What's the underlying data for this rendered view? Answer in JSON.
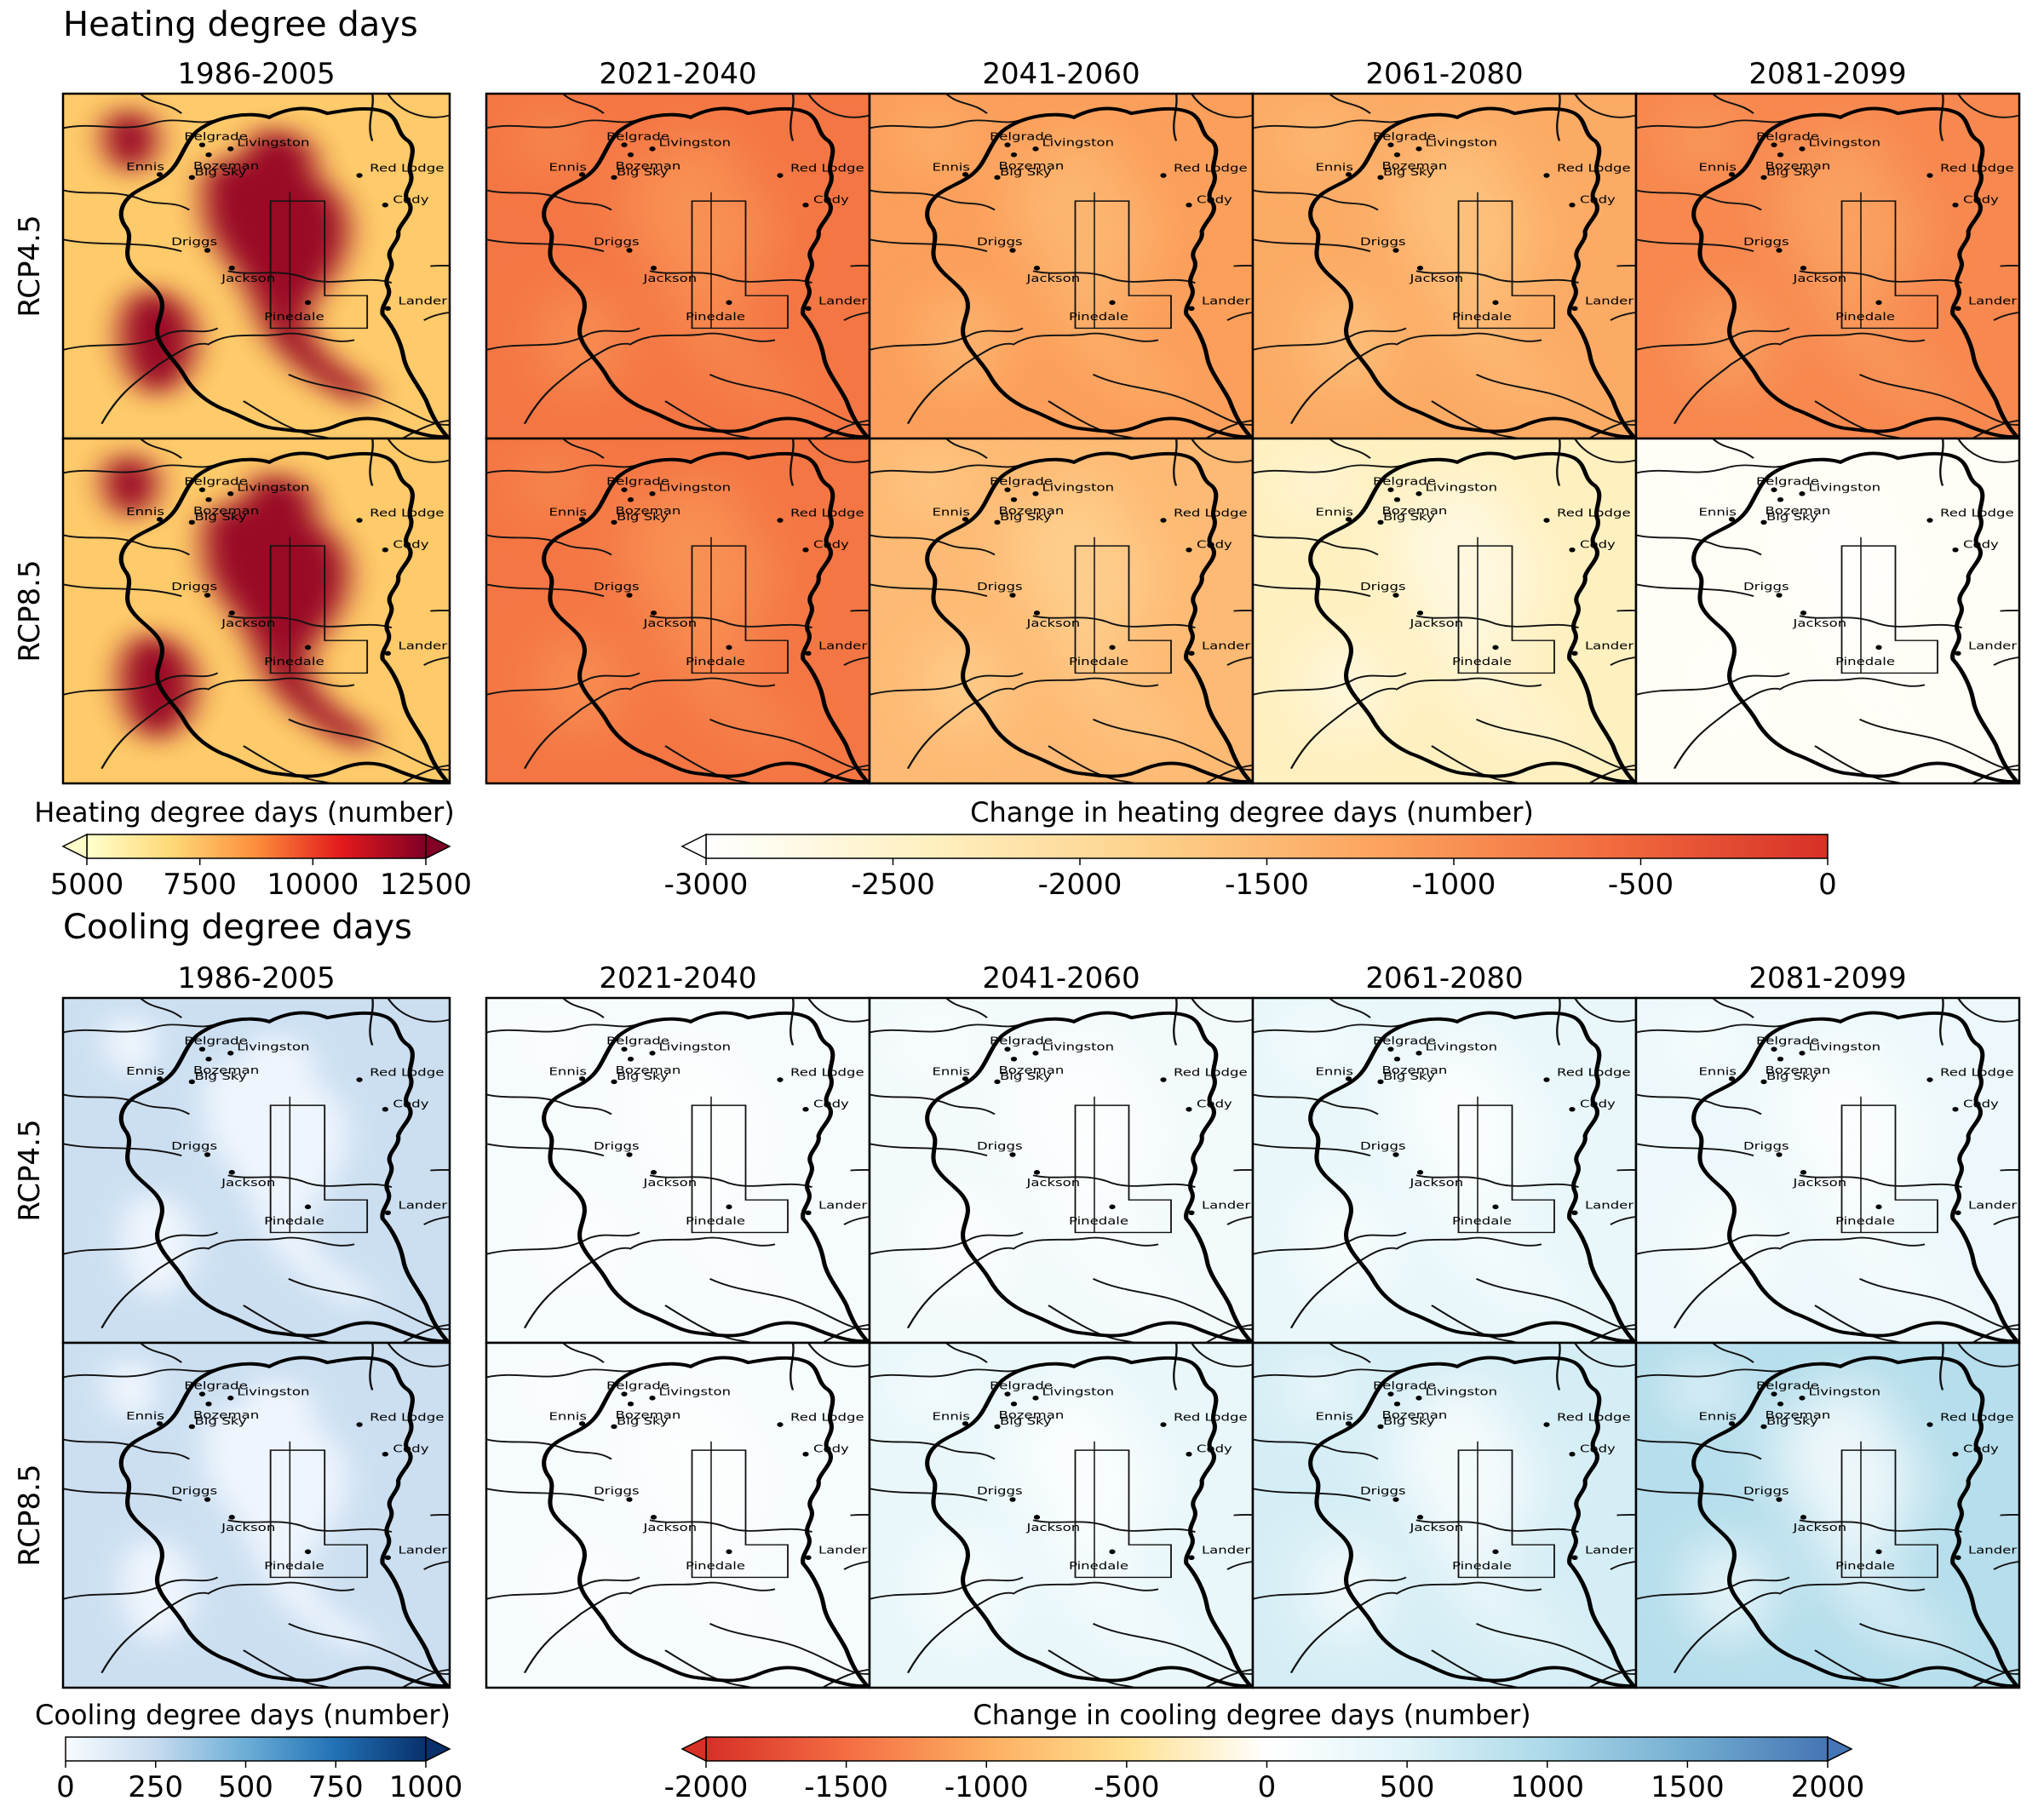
{
  "chart_data": [
    {
      "type": "heatmap",
      "title": "Heating degree days",
      "palette": "YlOrRd",
      "baseline_period": "1986-2005",
      "future_periods": [
        "2021-2040",
        "2041-2060",
        "2061-2080",
        "2081-2099"
      ],
      "scenarios": [
        "RCP4.5",
        "RCP8.5"
      ],
      "cities": [
        "Belgrade",
        "Bozeman",
        "Livingston",
        "Ennis",
        "Big Sky",
        "Red Lodge",
        "Cody",
        "Driggs",
        "Jackson",
        "Lander",
        "Pinedale"
      ],
      "baseline_colorbar": {
        "label": "Heating degree days (number)",
        "range": [
          5000,
          12500
        ],
        "ticks": [
          "5000",
          "7500",
          "10000",
          "12500"
        ],
        "extend": "both",
        "colors": [
          "#ffffcc",
          "#fed976",
          "#fd8d3c",
          "#e31a1c",
          "#800026"
        ]
      },
      "change_colorbar": {
        "label": "Change in heating degree days (number)",
        "range": [
          -3000,
          0
        ],
        "ticks": [
          "-3000",
          "-2500",
          "-2000",
          "-1500",
          "-1000",
          "-500",
          "0"
        ],
        "extend": "min",
        "colors": [
          "#ffffff",
          "#fff0c0",
          "#fdd089",
          "#fca35e",
          "#f26d3f",
          "#d73027"
        ]
      },
      "approx_mean_change": {
        "RCP4.5": [
          -700,
          -1150,
          -1300,
          -900
        ],
        "RCP8.5": [
          -700,
          -1500,
          -2400,
          -2900
        ]
      }
    },
    {
      "type": "heatmap",
      "title": "Cooling degree days",
      "palette": "Blues",
      "baseline_period": "1986-2005",
      "future_periods": [
        "2021-2040",
        "2041-2060",
        "2061-2080",
        "2081-2099"
      ],
      "scenarios": [
        "RCP4.5",
        "RCP8.5"
      ],
      "cities": [
        "Belgrade",
        "Bozeman",
        "Livingston",
        "Ennis",
        "Big Sky",
        "Red Lodge",
        "Cody",
        "Driggs",
        "Jackson",
        "Lander",
        "Pinedale"
      ],
      "baseline_colorbar": {
        "label": "Cooling degree days (number)",
        "range": [
          0,
          1000
        ],
        "ticks": [
          "0",
          "250",
          "500",
          "750",
          "1000"
        ],
        "extend": "max",
        "colors": [
          "#f7fbff",
          "#c6dbef",
          "#6baed6",
          "#2171b5",
          "#08306b"
        ]
      },
      "change_colorbar": {
        "label": "Change in cooling degree days (number)",
        "range": [
          -2000,
          2000
        ],
        "ticks": [
          "-2000",
          "-1500",
          "-1000",
          "-500",
          "0",
          "500",
          "1000",
          "1500",
          "2000"
        ],
        "extend": "both",
        "colors": [
          "#d73027",
          "#f46d43",
          "#fdae61",
          "#fee090",
          "#ffffff",
          "#e0f3f8",
          "#abd9e9",
          "#74add1",
          "#4575b4"
        ]
      },
      "approx_mean_change": {
        "RCP4.5": [
          150,
          200,
          350,
          300
        ],
        "RCP8.5": [
          150,
          350,
          600,
          900
        ]
      }
    }
  ],
  "city_names": {
    "belgrade": "Belgrade",
    "bozeman": "Bozeman",
    "livingston": "Livingston",
    "ennis": "Ennis",
    "bigsky": "Big Sky",
    "redlodge": "Red Lodge",
    "cody": "Cody",
    "driggs": "Driggs",
    "jackson": "Jackson",
    "lander": "Lander",
    "pinedale": "Pinedale"
  }
}
